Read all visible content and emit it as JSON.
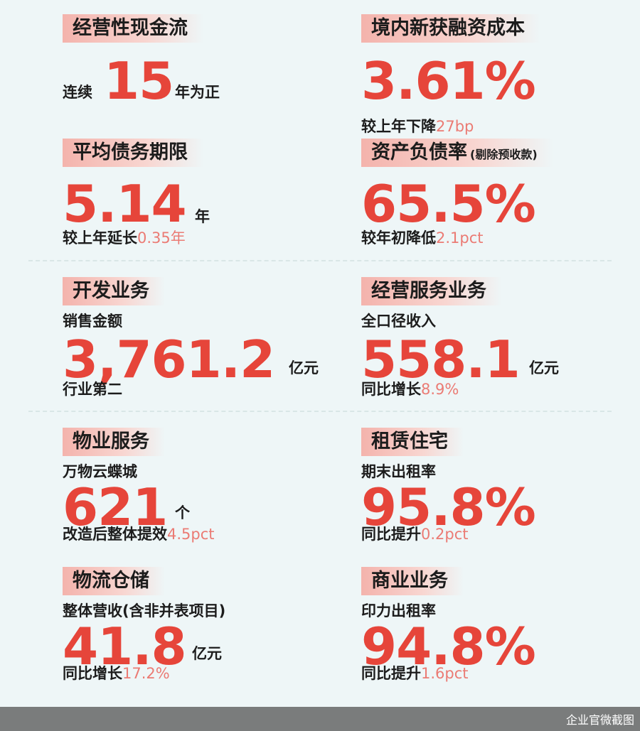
{
  "cards": {
    "cash": {
      "title": "经营性现金流",
      "pre": "连续",
      "value": "15",
      "unit": "年为正"
    },
    "cost": {
      "title": "境内新获融资成本",
      "value": "3.61%",
      "desc": "较上年下降",
      "hl": "27bp"
    },
    "term": {
      "title": "平均债务期限",
      "value": "5.14",
      "unit": "年",
      "desc": "较上年延长",
      "hl": "0.35年"
    },
    "debt": {
      "title": "资产负债率",
      "sub": "(剔除预收款)",
      "value": "65.5%",
      "desc": "较年初降低",
      "hl": "2.1pct"
    },
    "dev": {
      "title": "开发业务",
      "pre": "销售金额",
      "value": "3,761.2",
      "unit": "亿元",
      "desc": "行业第二"
    },
    "svc": {
      "title": "经营服务业务",
      "pre": "全口径收入",
      "value": "558.1",
      "unit": "亿元",
      "desc": "同比增长",
      "hl": "8.9%"
    },
    "prop": {
      "title": "物业服务",
      "pre": "万物云蝶城",
      "value": "621",
      "unit": "个",
      "desc": "改造后整体提效",
      "hl": "4.5pct"
    },
    "rent": {
      "title": "租赁住宅",
      "pre": "期末出租率",
      "value": "95.8%",
      "desc": "同比提升",
      "hl": "0.2pct"
    },
    "log": {
      "title": "物流仓储",
      "pre": "整体营收(含非并表项目)",
      "value": "41.8",
      "unit": "亿元",
      "desc": "同比增长",
      "hl": "17.2%"
    },
    "comm": {
      "title": "商业业务",
      "pre": "印力出租率",
      "value": "94.8%",
      "desc": "同比提升",
      "hl": "1.6pct"
    }
  },
  "footer": {
    "watermark": "企业官微截图"
  },
  "colors": {
    "accent": "#e6453a",
    "highlight": "#eb7b74",
    "tag": "#f4b3ac",
    "background": "#eef6f7"
  }
}
